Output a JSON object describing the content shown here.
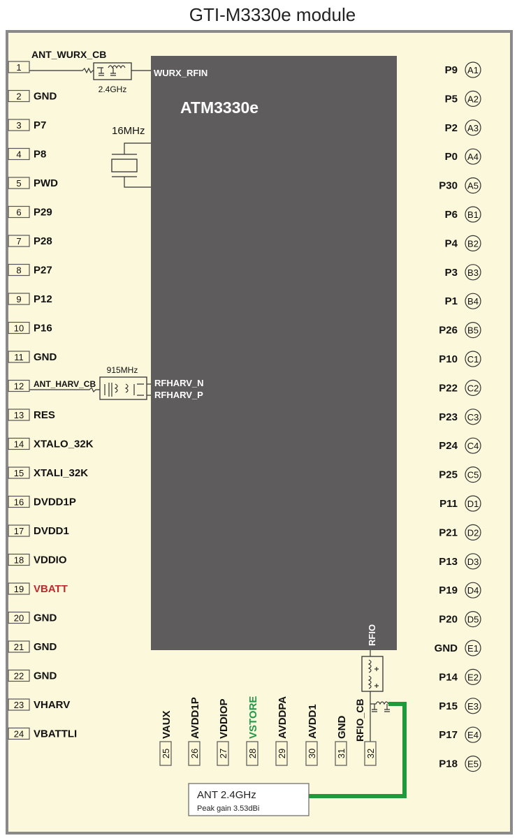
{
  "title": "GTI-M3330e module",
  "chip": {
    "name": "ATM3330e",
    "wurx_pin": "WURX_RFIN",
    "rfharv_n": "RFHARV_N",
    "rfharv_p": "RFHARV_P",
    "rfio": "RFIO"
  },
  "components": {
    "wurx_net": "ANT_WURX_CB",
    "wurx_filter_freq": "2.4GHz",
    "crystal_freq": "16MHz",
    "harv_net": "ANT_HARV_CB",
    "harv_filter_freq": "915MHz",
    "rfio_net": "RFIO_CB"
  },
  "antenna": {
    "label": "ANT 2.4GHz",
    "gain": "Peak gain 3.53dBi"
  },
  "colors": {
    "background": "#fcf8dc",
    "chip": "#5e5c5d",
    "frame": "#8a8a8a",
    "vbatt": "#c0282d",
    "vstore": "#1e9a48",
    "antenna_trace": "#1e9a3a"
  },
  "left_pins": [
    {
      "num": "1",
      "label": ""
    },
    {
      "num": "2",
      "label": "GND"
    },
    {
      "num": "3",
      "label": "P7"
    },
    {
      "num": "4",
      "label": "P8"
    },
    {
      "num": "5",
      "label": "PWD"
    },
    {
      "num": "6",
      "label": "P29"
    },
    {
      "num": "7",
      "label": "P28"
    },
    {
      "num": "8",
      "label": "P27"
    },
    {
      "num": "9",
      "label": "P12"
    },
    {
      "num": "10",
      "label": "P16"
    },
    {
      "num": "11",
      "label": "GND"
    },
    {
      "num": "12",
      "label": ""
    },
    {
      "num": "13",
      "label": "RES"
    },
    {
      "num": "14",
      "label": "XTALO_32K"
    },
    {
      "num": "15",
      "label": "XTALI_32K"
    },
    {
      "num": "16",
      "label": "DVDD1P"
    },
    {
      "num": "17",
      "label": "DVDD1"
    },
    {
      "num": "18",
      "label": "VDDIO"
    },
    {
      "num": "19",
      "label": "VBATT",
      "color": "#c0282d"
    },
    {
      "num": "20",
      "label": "GND"
    },
    {
      "num": "21",
      "label": "GND"
    },
    {
      "num": "22",
      "label": "GND"
    },
    {
      "num": "23",
      "label": "VHARV"
    },
    {
      "num": "24",
      "label": "VBATTLI"
    }
  ],
  "bottom_pins": [
    {
      "num": "25",
      "label": "VAUX"
    },
    {
      "num": "26",
      "label": "AVDD1P"
    },
    {
      "num": "27",
      "label": "VDDIOP"
    },
    {
      "num": "28",
      "label": "VSTORE",
      "color": "#1e9a48"
    },
    {
      "num": "29",
      "label": "AVDDPA"
    },
    {
      "num": "30",
      "label": "AVDD1"
    },
    {
      "num": "31",
      "label": "GND"
    },
    {
      "num": "32",
      "label": ""
    }
  ],
  "right_pins": [
    {
      "label": "P9",
      "ball": "A1"
    },
    {
      "label": "P5",
      "ball": "A2"
    },
    {
      "label": "P2",
      "ball": "A3"
    },
    {
      "label": "P0",
      "ball": "A4"
    },
    {
      "label": "P30",
      "ball": "A5"
    },
    {
      "label": "P6",
      "ball": "B1"
    },
    {
      "label": "P4",
      "ball": "B2"
    },
    {
      "label": "P3",
      "ball": "B3"
    },
    {
      "label": "P1",
      "ball": "B4"
    },
    {
      "label": "P26",
      "ball": "B5"
    },
    {
      "label": "P10",
      "ball": "C1"
    },
    {
      "label": "P22",
      "ball": "C2"
    },
    {
      "label": "P23",
      "ball": "C3"
    },
    {
      "label": "P24",
      "ball": "C4"
    },
    {
      "label": "P25",
      "ball": "C5"
    },
    {
      "label": "P11",
      "ball": "D1"
    },
    {
      "label": "P21",
      "ball": "D2"
    },
    {
      "label": "P13",
      "ball": "D3"
    },
    {
      "label": "P19",
      "ball": "D4"
    },
    {
      "label": "P20",
      "ball": "D5"
    },
    {
      "label": "GND",
      "ball": "E1"
    },
    {
      "label": "P14",
      "ball": "E2"
    },
    {
      "label": "P15",
      "ball": "E3"
    },
    {
      "label": "P17",
      "ball": "E4"
    },
    {
      "label": "P18",
      "ball": "E5"
    }
  ]
}
